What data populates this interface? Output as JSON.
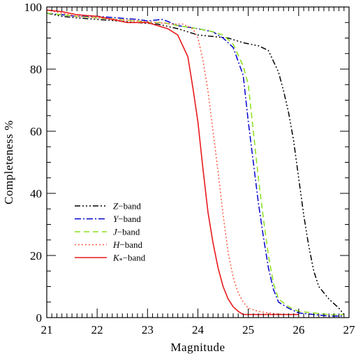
{
  "chart_data": {
    "type": "line",
    "title": "",
    "xlabel": "Magnitude",
    "ylabel": "Completeness %",
    "xlim": [
      21,
      27
    ],
    "ylim": [
      0,
      100
    ],
    "xticks": [
      21,
      22,
      23,
      24,
      25,
      26,
      27
    ],
    "yticks": [
      0,
      20,
      40,
      60,
      80,
      100
    ],
    "grid": false,
    "legend_position": "lower-left",
    "series": [
      {
        "name": "Z−band",
        "name_italic": "Z",
        "name_rest": "−band",
        "color": "#000000",
        "dash": "dash-dot-dot-dot",
        "x": [
          21.0,
          21.3,
          21.6,
          22.0,
          22.4,
          22.8,
          23.2,
          23.6,
          24.0,
          24.3,
          24.6,
          24.9,
          25.2,
          25.4,
          25.6,
          25.7,
          25.8,
          25.9,
          26.0,
          26.1,
          26.2,
          26.3,
          26.4,
          26.6,
          26.8,
          26.9
        ],
        "y": [
          98,
          97,
          96.5,
          96,
          95.5,
          95,
          94.5,
          93,
          91,
          90.5,
          90,
          88.5,
          87.5,
          86,
          79,
          73,
          66,
          57,
          45,
          33,
          23,
          15,
          10,
          6,
          3,
          1
        ]
      },
      {
        "name": "Y−band",
        "name_italic": "Y",
        "name_rest": "−band",
        "color": "#0000cc",
        "dash": "dash-dot",
        "x": [
          21.0,
          21.3,
          21.6,
          22.0,
          22.4,
          22.8,
          23.0,
          23.3,
          23.6,
          24.0,
          24.3,
          24.5,
          24.7,
          24.9,
          25.0,
          25.1,
          25.2,
          25.3,
          25.4,
          25.5,
          25.6,
          25.8,
          26.0,
          26.3,
          26.6,
          26.9
        ],
        "y": [
          98,
          97.5,
          97,
          97,
          96.5,
          96,
          95.5,
          96,
          94,
          93,
          92,
          90,
          87,
          78,
          63,
          50,
          37,
          26,
          16,
          9,
          5,
          3,
          1.5,
          1,
          0.5,
          0.5
        ]
      },
      {
        "name": "J−band",
        "name_italic": "J",
        "name_rest": "−band",
        "color": "#88e01a",
        "dash": "dashed",
        "x": [
          21.0,
          21.3,
          21.6,
          22.0,
          22.4,
          22.8,
          23.0,
          23.3,
          23.6,
          24.0,
          24.3,
          24.5,
          24.7,
          24.9,
          25.0,
          25.1,
          25.2,
          25.3,
          25.4,
          25.5,
          25.6,
          25.8,
          26.0,
          26.3,
          26.6,
          26.9
        ],
        "y": [
          98,
          97.5,
          97,
          96.5,
          96,
          95.5,
          95,
          95,
          94,
          93,
          92,
          91,
          88,
          81,
          75,
          60,
          45,
          32,
          20,
          11,
          6,
          3.5,
          2,
          1.5,
          1,
          1
        ]
      },
      {
        "name": "H−band",
        "name_italic": "H",
        "name_rest": "−band",
        "color": "#ff5a40",
        "dash": "dotted",
        "x": [
          21.0,
          21.3,
          21.6,
          22.0,
          22.4,
          22.8,
          23.2,
          23.5,
          23.7,
          23.9,
          24.0,
          24.1,
          24.2,
          24.3,
          24.4,
          24.5,
          24.6,
          24.7,
          24.8,
          24.9,
          25.0,
          25.2,
          25.4,
          25.7,
          26.0
        ],
        "y": [
          99,
          98,
          97,
          96.5,
          96,
          95.5,
          95,
          94.5,
          94.5,
          93,
          90,
          83,
          73,
          60,
          47,
          33,
          21,
          13,
          8,
          5,
          3,
          2,
          1.5,
          1,
          1
        ]
      },
      {
        "name": "K∗−band",
        "name_italic": "K",
        "name_sub": "*",
        "name_rest": "−band",
        "color": "#e8191c",
        "dash": "solid",
        "x": [
          21.0,
          21.3,
          21.6,
          22.0,
          22.3,
          22.6,
          23.0,
          23.4,
          23.6,
          23.8,
          23.9,
          24.0,
          24.1,
          24.2,
          24.3,
          24.4,
          24.5,
          24.6,
          24.7,
          24.8,
          24.9,
          25.0,
          25.1,
          25.3,
          25.6,
          26.0
        ],
        "y": [
          99,
          98.5,
          97.5,
          97,
          96,
          95,
          95,
          93,
          91,
          84,
          74,
          63,
          48,
          34,
          24,
          16,
          10,
          6,
          3.5,
          2,
          1,
          1,
          1,
          1,
          1,
          1
        ]
      }
    ]
  }
}
